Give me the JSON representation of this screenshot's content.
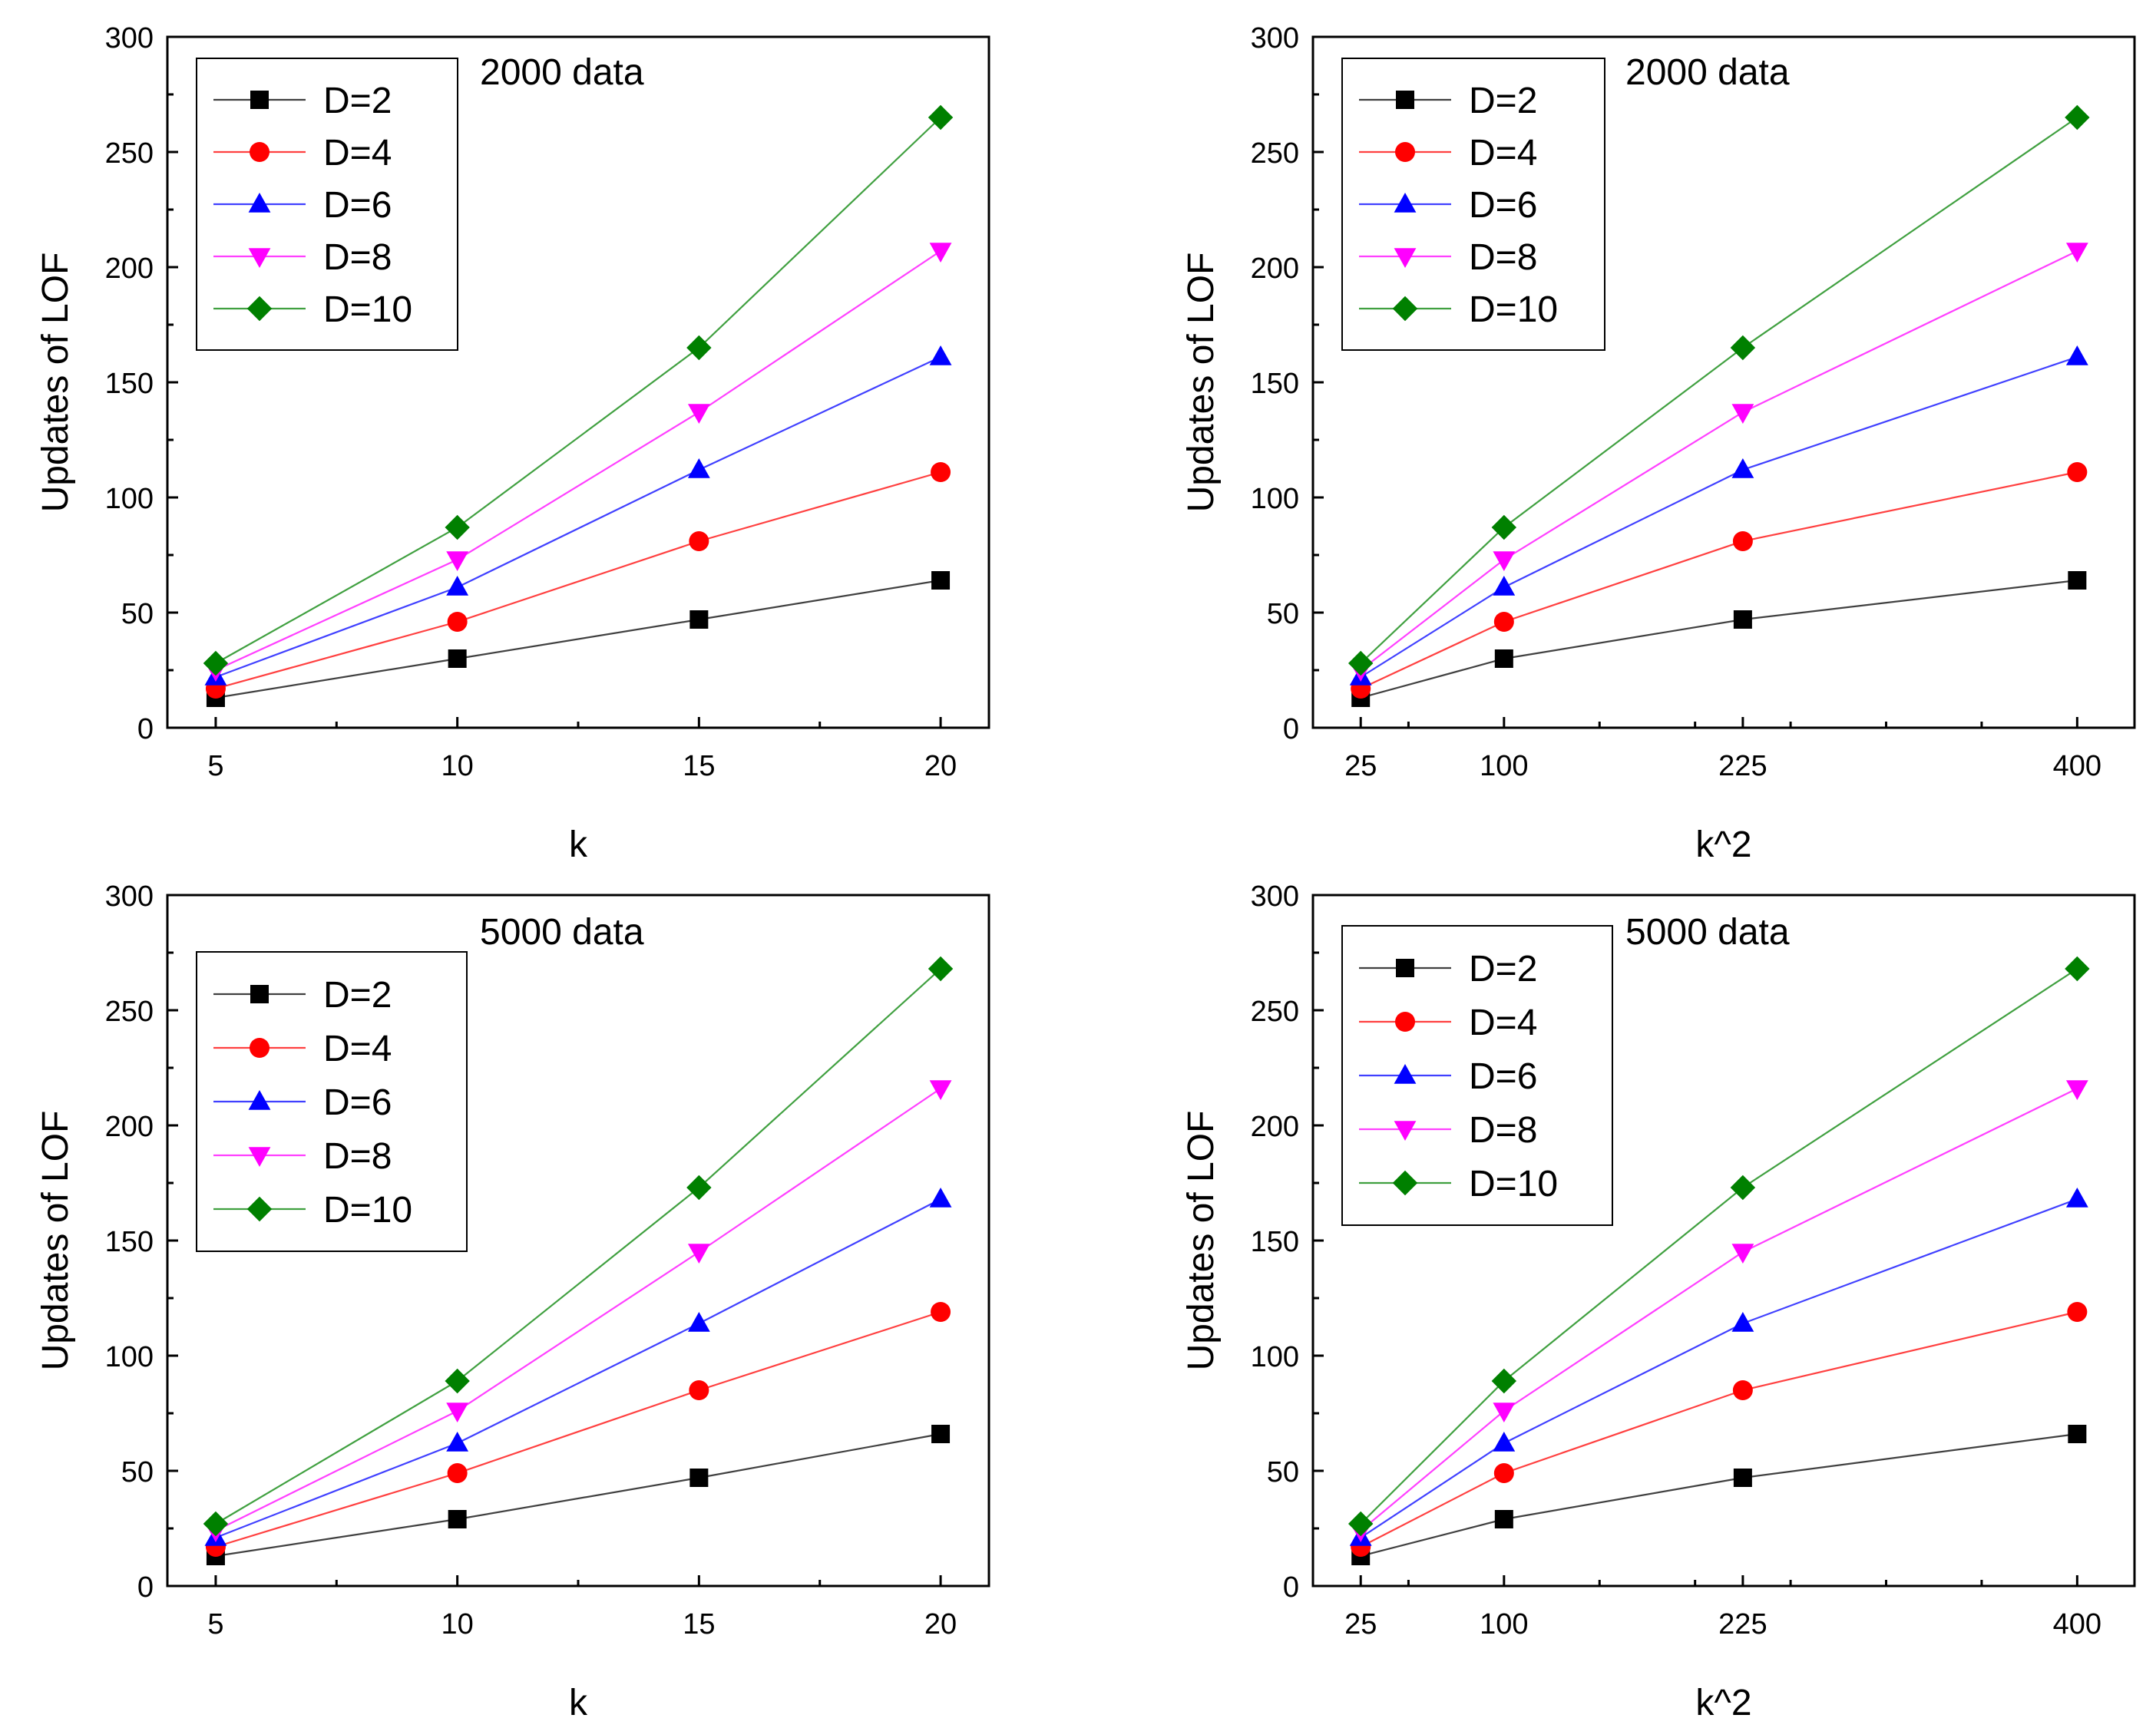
{
  "colors": {
    "D=2": "#000000",
    "D=4": "#ff0000",
    "D=6": "#0000ff",
    "D=8": "#ff00ff",
    "D=10": "#008000"
  },
  "chart_data": [
    {
      "type": "line",
      "annotation": "2000 data",
      "xlabel": "k",
      "ylabel": "Updates of LOF",
      "x": [
        5,
        10,
        15,
        20
      ],
      "xticks": [
        "5",
        "10",
        "15",
        "20"
      ],
      "xlim": [
        4,
        21
      ],
      "ylim": [
        0,
        300
      ],
      "yticks": [
        0,
        50,
        100,
        150,
        200,
        250,
        300
      ],
      "legend": "top-left",
      "series": [
        {
          "name": "D=2",
          "marker": "square",
          "values": [
            13,
            30,
            47,
            64
          ]
        },
        {
          "name": "D=4",
          "marker": "circle",
          "values": [
            17,
            46,
            81,
            111
          ]
        },
        {
          "name": "D=6",
          "marker": "triangle-up",
          "values": [
            22,
            61,
            112,
            161
          ]
        },
        {
          "name": "D=8",
          "marker": "triangle-down",
          "values": [
            25,
            73,
            137,
            207
          ]
        },
        {
          "name": "D=10",
          "marker": "diamond",
          "values": [
            28,
            87,
            165,
            265
          ]
        }
      ]
    },
    {
      "type": "line",
      "annotation": "2000 data",
      "xlabel": "k^2",
      "ylabel": "Updates of LOF",
      "x": [
        25,
        100,
        225,
        400
      ],
      "xticks": [
        "25",
        "100",
        "225",
        "400"
      ],
      "xlim": [
        0,
        430
      ],
      "ylim": [
        0,
        300
      ],
      "yticks": [
        0,
        50,
        100,
        150,
        200,
        250,
        300
      ],
      "legend": "top-left",
      "series": [
        {
          "name": "D=2",
          "marker": "square",
          "values": [
            13,
            30,
            47,
            64
          ]
        },
        {
          "name": "D=4",
          "marker": "circle",
          "values": [
            17,
            46,
            81,
            111
          ]
        },
        {
          "name": "D=6",
          "marker": "triangle-up",
          "values": [
            22,
            61,
            112,
            161
          ]
        },
        {
          "name": "D=8",
          "marker": "triangle-down",
          "values": [
            25,
            73,
            137,
            207
          ]
        },
        {
          "name": "D=10",
          "marker": "diamond",
          "values": [
            28,
            87,
            165,
            265
          ]
        }
      ]
    },
    {
      "type": "line",
      "annotation": "5000 data",
      "xlabel": "k",
      "ylabel": "Updates of LOF",
      "x": [
        5,
        10,
        15,
        20
      ],
      "xticks": [
        "5",
        "10",
        "15",
        "20"
      ],
      "xlim": [
        4,
        21
      ],
      "ylim": [
        0,
        300
      ],
      "yticks": [
        0,
        50,
        100,
        150,
        200,
        250,
        300
      ],
      "legend": "left",
      "series": [
        {
          "name": "D=2",
          "marker": "square",
          "values": [
            13,
            29,
            47,
            66
          ]
        },
        {
          "name": "D=4",
          "marker": "circle",
          "values": [
            17,
            49,
            85,
            119
          ]
        },
        {
          "name": "D=6",
          "marker": "triangle-up",
          "values": [
            21,
            62,
            114,
            168
          ]
        },
        {
          "name": "D=8",
          "marker": "triangle-down",
          "values": [
            24,
            76,
            145,
            216
          ]
        },
        {
          "name": "D=10",
          "marker": "diamond",
          "values": [
            27,
            89,
            173,
            268
          ]
        }
      ]
    },
    {
      "type": "line",
      "annotation": "5000 data",
      "xlabel": "k^2",
      "ylabel": "Updates of LOF",
      "x": [
        25,
        100,
        225,
        400
      ],
      "xticks": [
        "25",
        "100",
        "225",
        "400"
      ],
      "xlim": [
        0,
        430
      ],
      "ylim": [
        0,
        300
      ],
      "yticks": [
        0,
        50,
        100,
        150,
        200,
        250,
        300
      ],
      "legend": "top-left",
      "series": [
        {
          "name": "D=2",
          "marker": "square",
          "values": [
            13,
            29,
            47,
            66
          ]
        },
        {
          "name": "D=4",
          "marker": "circle",
          "values": [
            17,
            49,
            85,
            119
          ]
        },
        {
          "name": "D=6",
          "marker": "triangle-up",
          "values": [
            21,
            62,
            114,
            168
          ]
        },
        {
          "name": "D=8",
          "marker": "triangle-down",
          "values": [
            24,
            76,
            145,
            216
          ]
        },
        {
          "name": "D=10",
          "marker": "diamond",
          "values": [
            27,
            89,
            173,
            268
          ]
        }
      ]
    }
  ]
}
